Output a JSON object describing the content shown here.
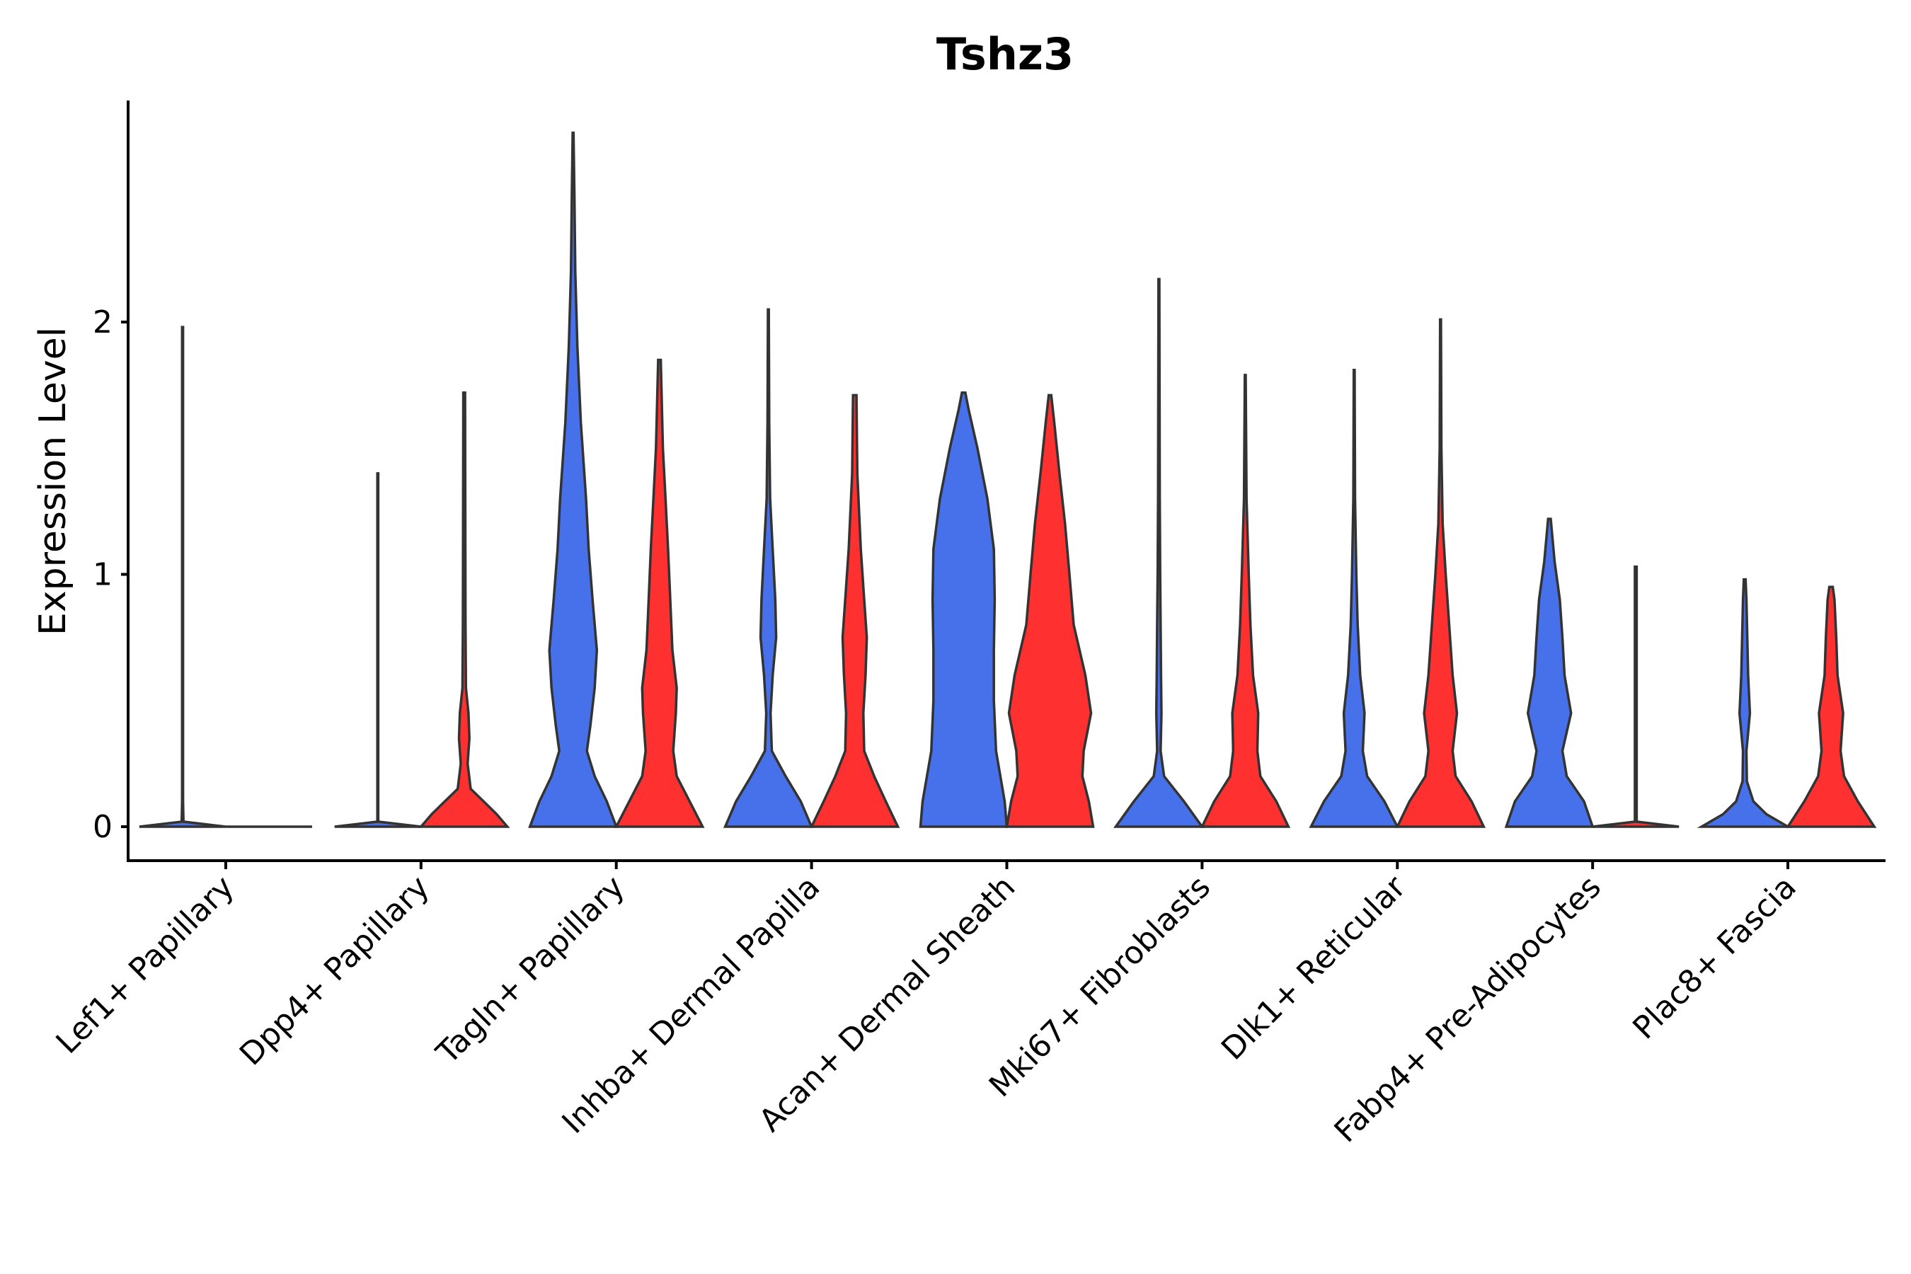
{
  "chart_data": {
    "type": "violin",
    "title": "Tshz3",
    "xlabel": "",
    "ylabel": "Expression Level",
    "ylim": [
      -0.14,
      2.9
    ],
    "yticks": [
      0,
      1,
      2
    ],
    "grid": false,
    "legend": "none",
    "series_colors": [
      "#4671EA",
      "#FF3030"
    ],
    "categories": [
      "Lef1+ Papillary",
      "Dpp4+ Papillary",
      "Tagln+ Papillary",
      "Inhba+ Dermal Papilla",
      "Acan+ Dermal Sheath",
      "Mki67+ Fibroblasts",
      "Dlk1+ Reticular",
      "Fabp4+ Pre-Adipocytes",
      "Plac8+ Fascia"
    ],
    "violins": [
      {
        "category": 0,
        "group": 0,
        "max": 1.98,
        "profile": [
          [
            0,
            1
          ],
          [
            0.02,
            0.02
          ],
          [
            0.1,
            0.01
          ],
          [
            1.98,
            0.01
          ]
        ]
      },
      {
        "category": 0,
        "group": 1,
        "max": 0.0,
        "profile": [
          [
            0,
            1
          ]
        ]
      },
      {
        "category": 1,
        "group": 0,
        "max": 1.4,
        "profile": [
          [
            0,
            1
          ],
          [
            0.02,
            0.01
          ],
          [
            1.4,
            0.01
          ]
        ]
      },
      {
        "category": 1,
        "group": 1,
        "max": 1.72,
        "profile": [
          [
            0,
            1
          ],
          [
            0.05,
            0.75
          ],
          [
            0.1,
            0.45
          ],
          [
            0.15,
            0.15
          ],
          [
            0.25,
            0.08
          ],
          [
            0.35,
            0.12
          ],
          [
            0.45,
            0.1
          ],
          [
            0.55,
            0.04
          ],
          [
            0.8,
            0.03
          ],
          [
            1.72,
            0.02
          ]
        ]
      },
      {
        "category": 2,
        "group": 0,
        "max": 2.75,
        "profile": [
          [
            0,
            1
          ],
          [
            0.1,
            0.78
          ],
          [
            0.2,
            0.5
          ],
          [
            0.3,
            0.32
          ],
          [
            0.4,
            0.4
          ],
          [
            0.55,
            0.5
          ],
          [
            0.7,
            0.55
          ],
          [
            0.9,
            0.45
          ],
          [
            1.1,
            0.36
          ],
          [
            1.3,
            0.3
          ],
          [
            1.6,
            0.18
          ],
          [
            1.9,
            0.1
          ],
          [
            2.2,
            0.05
          ],
          [
            2.5,
            0.03
          ],
          [
            2.75,
            0.01
          ]
        ]
      },
      {
        "category": 2,
        "group": 1,
        "max": 1.85,
        "profile": [
          [
            0,
            1
          ],
          [
            0.1,
            0.7
          ],
          [
            0.2,
            0.4
          ],
          [
            0.3,
            0.32
          ],
          [
            0.45,
            0.38
          ],
          [
            0.55,
            0.4
          ],
          [
            0.7,
            0.3
          ],
          [
            0.9,
            0.25
          ],
          [
            1.1,
            0.2
          ],
          [
            1.3,
            0.14
          ],
          [
            1.5,
            0.08
          ],
          [
            1.85,
            0.03
          ]
        ]
      },
      {
        "category": 3,
        "group": 0,
        "max": 2.05,
        "profile": [
          [
            0,
            1
          ],
          [
            0.1,
            0.75
          ],
          [
            0.2,
            0.4
          ],
          [
            0.3,
            0.08
          ],
          [
            0.45,
            0.05
          ],
          [
            0.6,
            0.1
          ],
          [
            0.75,
            0.18
          ],
          [
            0.9,
            0.16
          ],
          [
            1.1,
            0.1
          ],
          [
            1.3,
            0.04
          ],
          [
            1.6,
            0.02
          ],
          [
            2.05,
            0.01
          ]
        ]
      },
      {
        "category": 3,
        "group": 1,
        "max": 1.71,
        "profile": [
          [
            0,
            1
          ],
          [
            0.1,
            0.72
          ],
          [
            0.2,
            0.45
          ],
          [
            0.3,
            0.22
          ],
          [
            0.45,
            0.2
          ],
          [
            0.6,
            0.25
          ],
          [
            0.75,
            0.28
          ],
          [
            0.9,
            0.22
          ],
          [
            1.1,
            0.14
          ],
          [
            1.4,
            0.06
          ],
          [
            1.71,
            0.04
          ]
        ]
      },
      {
        "category": 4,
        "group": 0,
        "max": 1.72,
        "profile": [
          [
            0,
            1
          ],
          [
            0.1,
            0.95
          ],
          [
            0.3,
            0.75
          ],
          [
            0.5,
            0.7
          ],
          [
            0.7,
            0.7
          ],
          [
            0.9,
            0.72
          ],
          [
            1.1,
            0.7
          ],
          [
            1.3,
            0.55
          ],
          [
            1.5,
            0.32
          ],
          [
            1.65,
            0.12
          ],
          [
            1.72,
            0.04
          ]
        ]
      },
      {
        "category": 4,
        "group": 1,
        "max": 1.71,
        "profile": [
          [
            0,
            1
          ],
          [
            0.1,
            0.9
          ],
          [
            0.2,
            0.75
          ],
          [
            0.3,
            0.78
          ],
          [
            0.45,
            0.95
          ],
          [
            0.6,
            0.82
          ],
          [
            0.8,
            0.55
          ],
          [
            1.0,
            0.45
          ],
          [
            1.2,
            0.35
          ],
          [
            1.4,
            0.22
          ],
          [
            1.6,
            0.1
          ],
          [
            1.71,
            0.03
          ]
        ]
      },
      {
        "category": 5,
        "group": 0,
        "max": 2.17,
        "profile": [
          [
            0,
            1
          ],
          [
            0.1,
            0.58
          ],
          [
            0.2,
            0.12
          ],
          [
            0.3,
            0.04
          ],
          [
            0.45,
            0.06
          ],
          [
            0.6,
            0.05
          ],
          [
            0.8,
            0.04
          ],
          [
            1.0,
            0.03
          ],
          [
            1.3,
            0.02
          ],
          [
            2.17,
            0.01
          ]
        ]
      },
      {
        "category": 5,
        "group": 1,
        "max": 1.79,
        "profile": [
          [
            0,
            1
          ],
          [
            0.1,
            0.72
          ],
          [
            0.2,
            0.35
          ],
          [
            0.3,
            0.28
          ],
          [
            0.45,
            0.3
          ],
          [
            0.6,
            0.18
          ],
          [
            0.8,
            0.12
          ],
          [
            1.0,
            0.08
          ],
          [
            1.3,
            0.03
          ],
          [
            1.79,
            0.01
          ]
        ]
      },
      {
        "category": 6,
        "group": 0,
        "max": 1.81,
        "profile": [
          [
            0,
            1
          ],
          [
            0.1,
            0.7
          ],
          [
            0.2,
            0.3
          ],
          [
            0.3,
            0.2
          ],
          [
            0.45,
            0.24
          ],
          [
            0.6,
            0.14
          ],
          [
            0.8,
            0.08
          ],
          [
            1.0,
            0.05
          ],
          [
            1.3,
            0.02
          ],
          [
            1.81,
            0.01
          ]
        ]
      },
      {
        "category": 6,
        "group": 1,
        "max": 2.01,
        "profile": [
          [
            0,
            1
          ],
          [
            0.1,
            0.72
          ],
          [
            0.2,
            0.35
          ],
          [
            0.3,
            0.28
          ],
          [
            0.45,
            0.38
          ],
          [
            0.6,
            0.28
          ],
          [
            0.8,
            0.2
          ],
          [
            1.0,
            0.12
          ],
          [
            1.2,
            0.05
          ],
          [
            1.5,
            0.02
          ],
          [
            2.01,
            0.01
          ]
        ]
      },
      {
        "category": 7,
        "group": 0,
        "max": 1.22,
        "profile": [
          [
            0,
            1
          ],
          [
            0.1,
            0.8
          ],
          [
            0.2,
            0.4
          ],
          [
            0.3,
            0.3
          ],
          [
            0.45,
            0.5
          ],
          [
            0.6,
            0.35
          ],
          [
            0.75,
            0.3
          ],
          [
            0.9,
            0.24
          ],
          [
            1.05,
            0.12
          ],
          [
            1.22,
            0.03
          ]
        ]
      },
      {
        "category": 7,
        "group": 1,
        "max": 1.03,
        "profile": [
          [
            0,
            1
          ],
          [
            0.02,
            0.02
          ],
          [
            0.2,
            0.02
          ],
          [
            1.03,
            0.02
          ]
        ]
      },
      {
        "category": 8,
        "group": 0,
        "max": 0.98,
        "profile": [
          [
            0,
            1
          ],
          [
            0.05,
            0.5
          ],
          [
            0.1,
            0.2
          ],
          [
            0.18,
            0.05
          ],
          [
            0.3,
            0.04
          ],
          [
            0.45,
            0.12
          ],
          [
            0.6,
            0.08
          ],
          [
            0.75,
            0.06
          ],
          [
            0.9,
            0.04
          ],
          [
            0.98,
            0.02
          ]
        ]
      },
      {
        "category": 8,
        "group": 1,
        "max": 0.95,
        "profile": [
          [
            0,
            1
          ],
          [
            0.1,
            0.62
          ],
          [
            0.2,
            0.3
          ],
          [
            0.3,
            0.22
          ],
          [
            0.45,
            0.28
          ],
          [
            0.6,
            0.15
          ],
          [
            0.75,
            0.12
          ],
          [
            0.9,
            0.08
          ],
          [
            0.95,
            0.04
          ]
        ]
      }
    ]
  }
}
